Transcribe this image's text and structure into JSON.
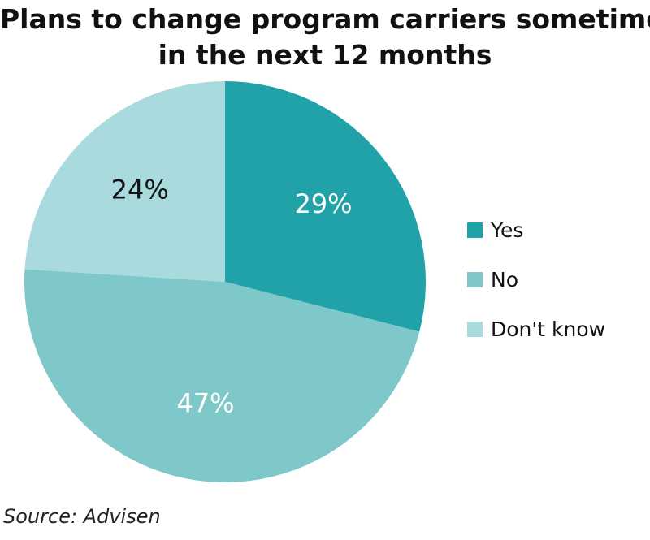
{
  "chart_data": {
    "type": "pie",
    "title_lines": [
      "Plans to change program carriers sometime",
      "in the next 12 months"
    ],
    "categories": [
      "Yes",
      "No",
      "Don't know"
    ],
    "values": [
      29,
      47,
      24
    ],
    "labels": [
      "29%",
      "47%",
      "24%"
    ],
    "colors": [
      "#20a2a8",
      "#7ec8ca",
      "#a9dadd"
    ],
    "label_colors": [
      "#ffffff",
      "#ffffff",
      "#111111"
    ],
    "start_angle_deg": 0,
    "direction": "clockwise",
    "legend_position": "right"
  },
  "source": "Source: Advisen"
}
